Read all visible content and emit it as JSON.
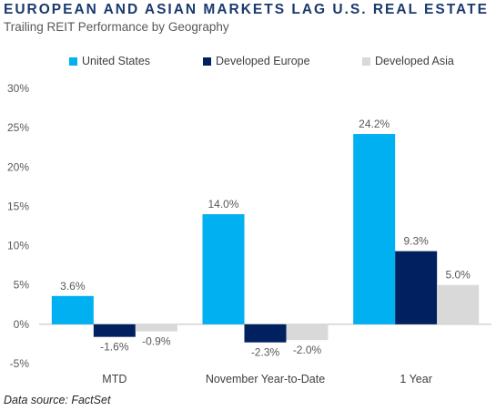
{
  "header": {
    "title": "EUROPEAN AND ASIAN MARKETS LAG U.S. REAL ESTATE",
    "subtitle": "Trailing REIT Performance by Geography"
  },
  "footer": {
    "source": "Data source: FactSet"
  },
  "chart_data": {
    "type": "bar",
    "categories": [
      "MTD",
      "November Year-to-Date",
      "1 Year"
    ],
    "series": [
      {
        "name": "United States",
        "color": "#00b0f0",
        "values": [
          3.6,
          14.0,
          24.2
        ],
        "labels": [
          "3.6%",
          "14.0%",
          "24.2%"
        ]
      },
      {
        "name": "Developed Europe",
        "color": "#002060",
        "values": [
          -1.6,
          -2.3,
          9.3
        ],
        "labels": [
          "-1.6%",
          "-2.3%",
          "9.3%"
        ]
      },
      {
        "name": "Developed Asia",
        "color": "#d9d9d9",
        "values": [
          -0.9,
          -2.0,
          5.0
        ],
        "labels": [
          "-0.9%",
          "-2.0%",
          "5.0%"
        ]
      }
    ],
    "yticks": [
      30,
      25,
      20,
      15,
      10,
      5,
      0,
      -5
    ],
    "ytick_labels": [
      "30%",
      "25%",
      "20%",
      "15%",
      "10%",
      "5%",
      "0%",
      "-5%"
    ],
    "ylim": [
      -5,
      30
    ],
    "grid": false,
    "legend_position": "top"
  }
}
